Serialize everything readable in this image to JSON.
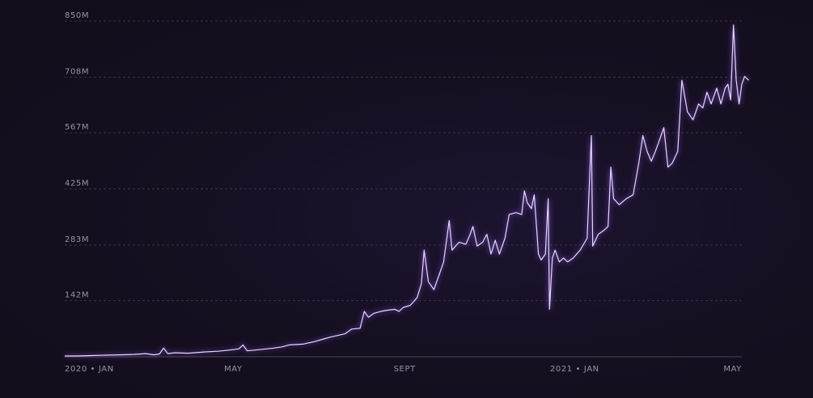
{
  "chart_data": {
    "type": "line",
    "title": "",
    "xlabel": "",
    "ylabel": "",
    "ylim": [
      0,
      850
    ],
    "y_ticks": [
      {
        "value": 142,
        "label": "142M"
      },
      {
        "value": 283,
        "label": "283M"
      },
      {
        "value": 425,
        "label": "425M"
      },
      {
        "value": 567,
        "label": "567M"
      },
      {
        "value": 708,
        "label": "708M"
      },
      {
        "value": 850,
        "label": "850M"
      }
    ],
    "x_ticks": [
      {
        "date": "2020-01-01",
        "label": "2020 • JAN"
      },
      {
        "date": "2020-05-01",
        "label": "MAY"
      },
      {
        "date": "2020-09-01",
        "label": "SEPT"
      },
      {
        "date": "2021-01-01",
        "label": "2021 • JAN"
      },
      {
        "date": "2021-05-01",
        "label": "MAY"
      }
    ],
    "grid": true,
    "legend": "none",
    "colors": {
      "line": "#e8d8ff",
      "glow": "#9c6bff",
      "grid": "#3a3346",
      "axis_text": "#9a93a8",
      "background": "#130e1c"
    },
    "series": [
      {
        "points": [
          [
            "2020-01-01",
            2
          ],
          [
            "2020-01-10",
            2
          ],
          [
            "2020-01-20",
            3
          ],
          [
            "2020-01-30",
            4
          ],
          [
            "2020-02-10",
            5
          ],
          [
            "2020-02-20",
            6
          ],
          [
            "2020-02-28",
            8
          ],
          [
            "2020-03-05",
            5
          ],
          [
            "2020-03-09",
            7
          ],
          [
            "2020-03-12",
            22
          ],
          [
            "2020-03-15",
            8
          ],
          [
            "2020-03-20",
            10
          ],
          [
            "2020-03-30",
            9
          ],
          [
            "2020-04-10",
            12
          ],
          [
            "2020-04-20",
            14
          ],
          [
            "2020-04-26",
            16
          ],
          [
            "2020-05-01",
            18
          ],
          [
            "2020-05-05",
            20
          ],
          [
            "2020-05-08",
            30
          ],
          [
            "2020-05-11",
            15
          ],
          [
            "2020-05-20",
            18
          ],
          [
            "2020-05-30",
            22
          ],
          [
            "2020-06-05",
            25
          ],
          [
            "2020-06-10",
            30
          ],
          [
            "2020-06-20",
            32
          ],
          [
            "2020-06-28",
            38
          ],
          [
            "2020-07-05",
            45
          ],
          [
            "2020-07-10",
            50
          ],
          [
            "2020-07-20",
            58
          ],
          [
            "2020-07-25",
            70
          ],
          [
            "2020-07-31",
            72
          ],
          [
            "2020-08-03",
            115
          ],
          [
            "2020-08-06",
            100
          ],
          [
            "2020-08-10",
            110
          ],
          [
            "2020-08-15",
            115
          ],
          [
            "2020-08-20",
            118
          ],
          [
            "2020-08-25",
            120
          ],
          [
            "2020-08-28",
            115
          ],
          [
            "2020-08-31",
            125
          ],
          [
            "2020-09-05",
            130
          ],
          [
            "2020-09-10",
            150
          ],
          [
            "2020-09-13",
            185
          ],
          [
            "2020-09-15",
            270
          ],
          [
            "2020-09-18",
            190
          ],
          [
            "2020-09-22",
            170
          ],
          [
            "2020-09-26",
            210
          ],
          [
            "2020-09-29",
            240
          ],
          [
            "2020-10-03",
            345
          ],
          [
            "2020-10-05",
            270
          ],
          [
            "2020-10-10",
            290
          ],
          [
            "2020-10-15",
            285
          ],
          [
            "2020-10-18",
            310
          ],
          [
            "2020-10-20",
            330
          ],
          [
            "2020-10-23",
            280
          ],
          [
            "2020-10-27",
            290
          ],
          [
            "2020-10-30",
            310
          ],
          [
            "2020-11-02",
            260
          ],
          [
            "2020-11-05",
            295
          ],
          [
            "2020-11-08",
            260
          ],
          [
            "2020-11-12",
            300
          ],
          [
            "2020-11-15",
            360
          ],
          [
            "2020-11-20",
            365
          ],
          [
            "2020-11-24",
            360
          ],
          [
            "2020-11-26",
            420
          ],
          [
            "2020-11-28",
            390
          ],
          [
            "2020-12-01",
            375
          ],
          [
            "2020-12-03",
            410
          ],
          [
            "2020-12-06",
            260
          ],
          [
            "2020-12-08",
            245
          ],
          [
            "2020-12-11",
            260
          ],
          [
            "2020-12-13",
            400
          ],
          [
            "2020-12-14",
            120
          ],
          [
            "2020-12-16",
            250
          ],
          [
            "2020-12-18",
            270
          ],
          [
            "2020-12-21",
            240
          ],
          [
            "2020-12-24",
            250
          ],
          [
            "2020-12-27",
            240
          ],
          [
            "2020-12-31",
            250
          ],
          [
            "2021-01-05",
            270
          ],
          [
            "2021-01-10",
            300
          ],
          [
            "2021-01-13",
            560
          ],
          [
            "2021-01-14",
            280
          ],
          [
            "2021-01-18",
            310
          ],
          [
            "2021-01-22",
            320
          ],
          [
            "2021-01-25",
            330
          ],
          [
            "2021-01-27",
            480
          ],
          [
            "2021-01-29",
            400
          ],
          [
            "2021-02-02",
            385
          ],
          [
            "2021-02-07",
            400
          ],
          [
            "2021-02-12",
            410
          ],
          [
            "2021-02-16",
            490
          ],
          [
            "2021-02-19",
            560
          ],
          [
            "2021-02-22",
            520
          ],
          [
            "2021-02-25",
            495
          ],
          [
            "2021-02-28",
            520
          ],
          [
            "2021-03-03",
            550
          ],
          [
            "2021-03-06",
            580
          ],
          [
            "2021-03-09",
            480
          ],
          [
            "2021-03-12",
            490
          ],
          [
            "2021-03-16",
            520
          ],
          [
            "2021-03-19",
            700
          ],
          [
            "2021-03-23",
            620
          ],
          [
            "2021-03-27",
            600
          ],
          [
            "2021-03-31",
            640
          ],
          [
            "2021-04-03",
            630
          ],
          [
            "2021-04-06",
            670
          ],
          [
            "2021-04-09",
            640
          ],
          [
            "2021-04-13",
            680
          ],
          [
            "2021-04-16",
            640
          ],
          [
            "2021-04-19",
            680
          ],
          [
            "2021-04-21",
            690
          ],
          [
            "2021-04-23",
            650
          ],
          [
            "2021-04-25",
            840
          ],
          [
            "2021-04-27",
            700
          ],
          [
            "2021-04-29",
            640
          ],
          [
            "2021-05-01",
            690
          ],
          [
            "2021-05-03",
            710
          ],
          [
            "2021-05-06",
            700
          ]
        ]
      }
    ]
  }
}
